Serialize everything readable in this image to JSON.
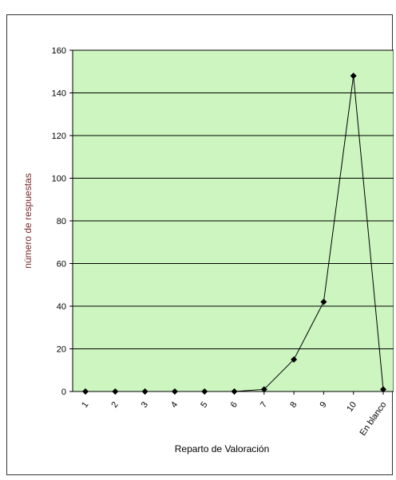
{
  "chart_data": {
    "type": "line",
    "title": "",
    "xlabel": "Reparto de Valoración",
    "ylabel": "número de respuestas",
    "categories": [
      "1",
      "2",
      "3",
      "4",
      "5",
      "6",
      "7",
      "8",
      "9",
      "10",
      "En blanco"
    ],
    "series": [
      {
        "values": [
          0,
          0,
          0,
          0,
          0,
          0,
          1,
          15,
          42,
          148,
          1
        ]
      }
    ],
    "ylim": [
      0,
      160
    ],
    "yticks": [
      "0",
      "20",
      "40",
      "60",
      "80",
      "100",
      "120",
      "140",
      "160"
    ],
    "grid": true,
    "legend": "none",
    "plot_background": "#ccf5c0",
    "line_color": "#000000",
    "marker": "diamond"
  }
}
